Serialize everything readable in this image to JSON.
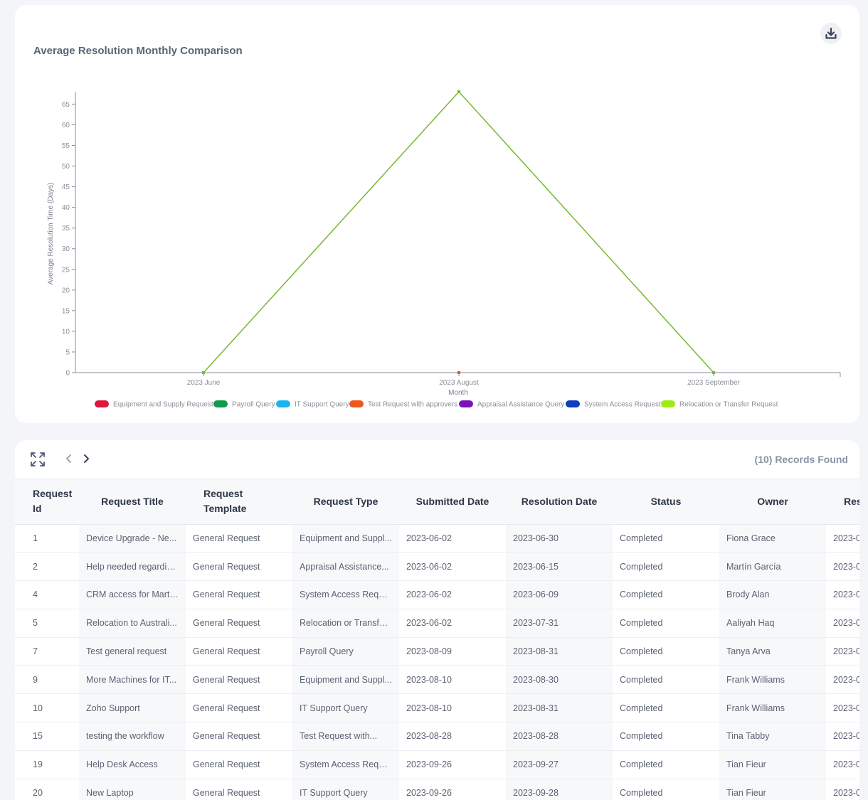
{
  "chart": {
    "title": "Average Resolution Monthly Comparison",
    "download_icon": "download-icon"
  },
  "chart_data": {
    "type": "line",
    "title": "Average Resolution Monthly Comparison",
    "xlabel": "Month",
    "ylabel": "Average Resolution Time (Days)",
    "categories": [
      "2023 June",
      "2023 August",
      "2023 September"
    ],
    "ylim": [
      0,
      68
    ],
    "yticks": [
      0,
      5,
      10,
      15,
      20,
      25,
      30,
      35,
      40,
      45,
      50,
      55,
      60,
      65
    ],
    "legend_position": "bottom",
    "series": [
      {
        "name": "Equipment and Supply Request",
        "color": "#e0163f",
        "values": [
          null,
          null,
          null
        ]
      },
      {
        "name": "Payroll Query",
        "color": "#0f9b4a",
        "values": [
          null,
          null,
          null
        ]
      },
      {
        "name": "IT Support Query",
        "color": "#1ab4f0",
        "values": [
          null,
          null,
          null
        ]
      },
      {
        "name": "Test Request with approvers",
        "color": "#f0561c",
        "values": [
          null,
          0,
          null
        ]
      },
      {
        "name": "Appraisal Assistance Query",
        "color": "#7b14b4",
        "values": [
          null,
          null,
          null
        ]
      },
      {
        "name": "System Access Request",
        "color": "#0b3fbd",
        "values": [
          null,
          null,
          null
        ]
      },
      {
        "name": "Relocation or Transfer Request",
        "color": "#9cec12",
        "values": [
          0,
          68,
          0
        ]
      }
    ],
    "line_color": "#78b832"
  },
  "table": {
    "records_found": "(10) Records Found",
    "expand_icon": "expand-icon",
    "prev_icon": "chevron-left-icon",
    "next_icon": "chevron-right-icon",
    "columns": [
      "Request Id",
      "Request Title",
      "Request Template",
      "Request Type",
      "Submitted Date",
      "Resolution Date",
      "Status",
      "Owner",
      "Res"
    ],
    "rows": [
      [
        "1",
        "Device Upgrade - Ne...",
        "General Request",
        "Equipment and Suppl...",
        "2023-06-02",
        "2023-06-30",
        "Completed",
        "Fiona Grace",
        "2023-0"
      ],
      [
        "2",
        "Help needed regardin...",
        "General Request",
        "Appraisal Assistance...",
        "2023-06-02",
        "2023-06-15",
        "Completed",
        "Martín García",
        "2023-0"
      ],
      [
        "4",
        "CRM access for Martin...",
        "General Request",
        "System Access Request",
        "2023-06-02",
        "2023-06-09",
        "Completed",
        "Brody Alan",
        "2023-0"
      ],
      [
        "5",
        "Relocation to Australi...",
        "General Request",
        "Relocation or Transfer...",
        "2023-06-02",
        "2023-07-31",
        "Completed",
        "Aaliyah Haq",
        "2023-0"
      ],
      [
        "7",
        "Test general request",
        "General Request",
        "Payroll Query",
        "2023-08-09",
        "2023-08-31",
        "Completed",
        "Tanya Arva",
        "2023-0"
      ],
      [
        "9",
        "More Machines for IT...",
        "General Request",
        "Equipment and Suppl...",
        "2023-08-10",
        "2023-08-30",
        "Completed",
        "Frank Williams",
        "2023-0"
      ],
      [
        "10",
        "Zoho Support",
        "General Request",
        "IT Support Query",
        "2023-08-10",
        "2023-08-31",
        "Completed",
        "Frank Williams",
        "2023-0"
      ],
      [
        "15",
        "testing the workflow",
        "General Request",
        "Test Request with...",
        "2023-08-28",
        "2023-08-28",
        "Completed",
        "Tina Tabby",
        "2023-0"
      ],
      [
        "19",
        "Help Desk Access",
        "General Request",
        "System Access Request",
        "2023-09-26",
        "2023-09-27",
        "Completed",
        "Tian Fieur",
        "2023-0"
      ],
      [
        "20",
        "New Laptop",
        "General Request",
        "IT Support Query",
        "2023-09-26",
        "2023-09-28",
        "Completed",
        "Tian Fieur",
        "2023-0"
      ]
    ]
  }
}
